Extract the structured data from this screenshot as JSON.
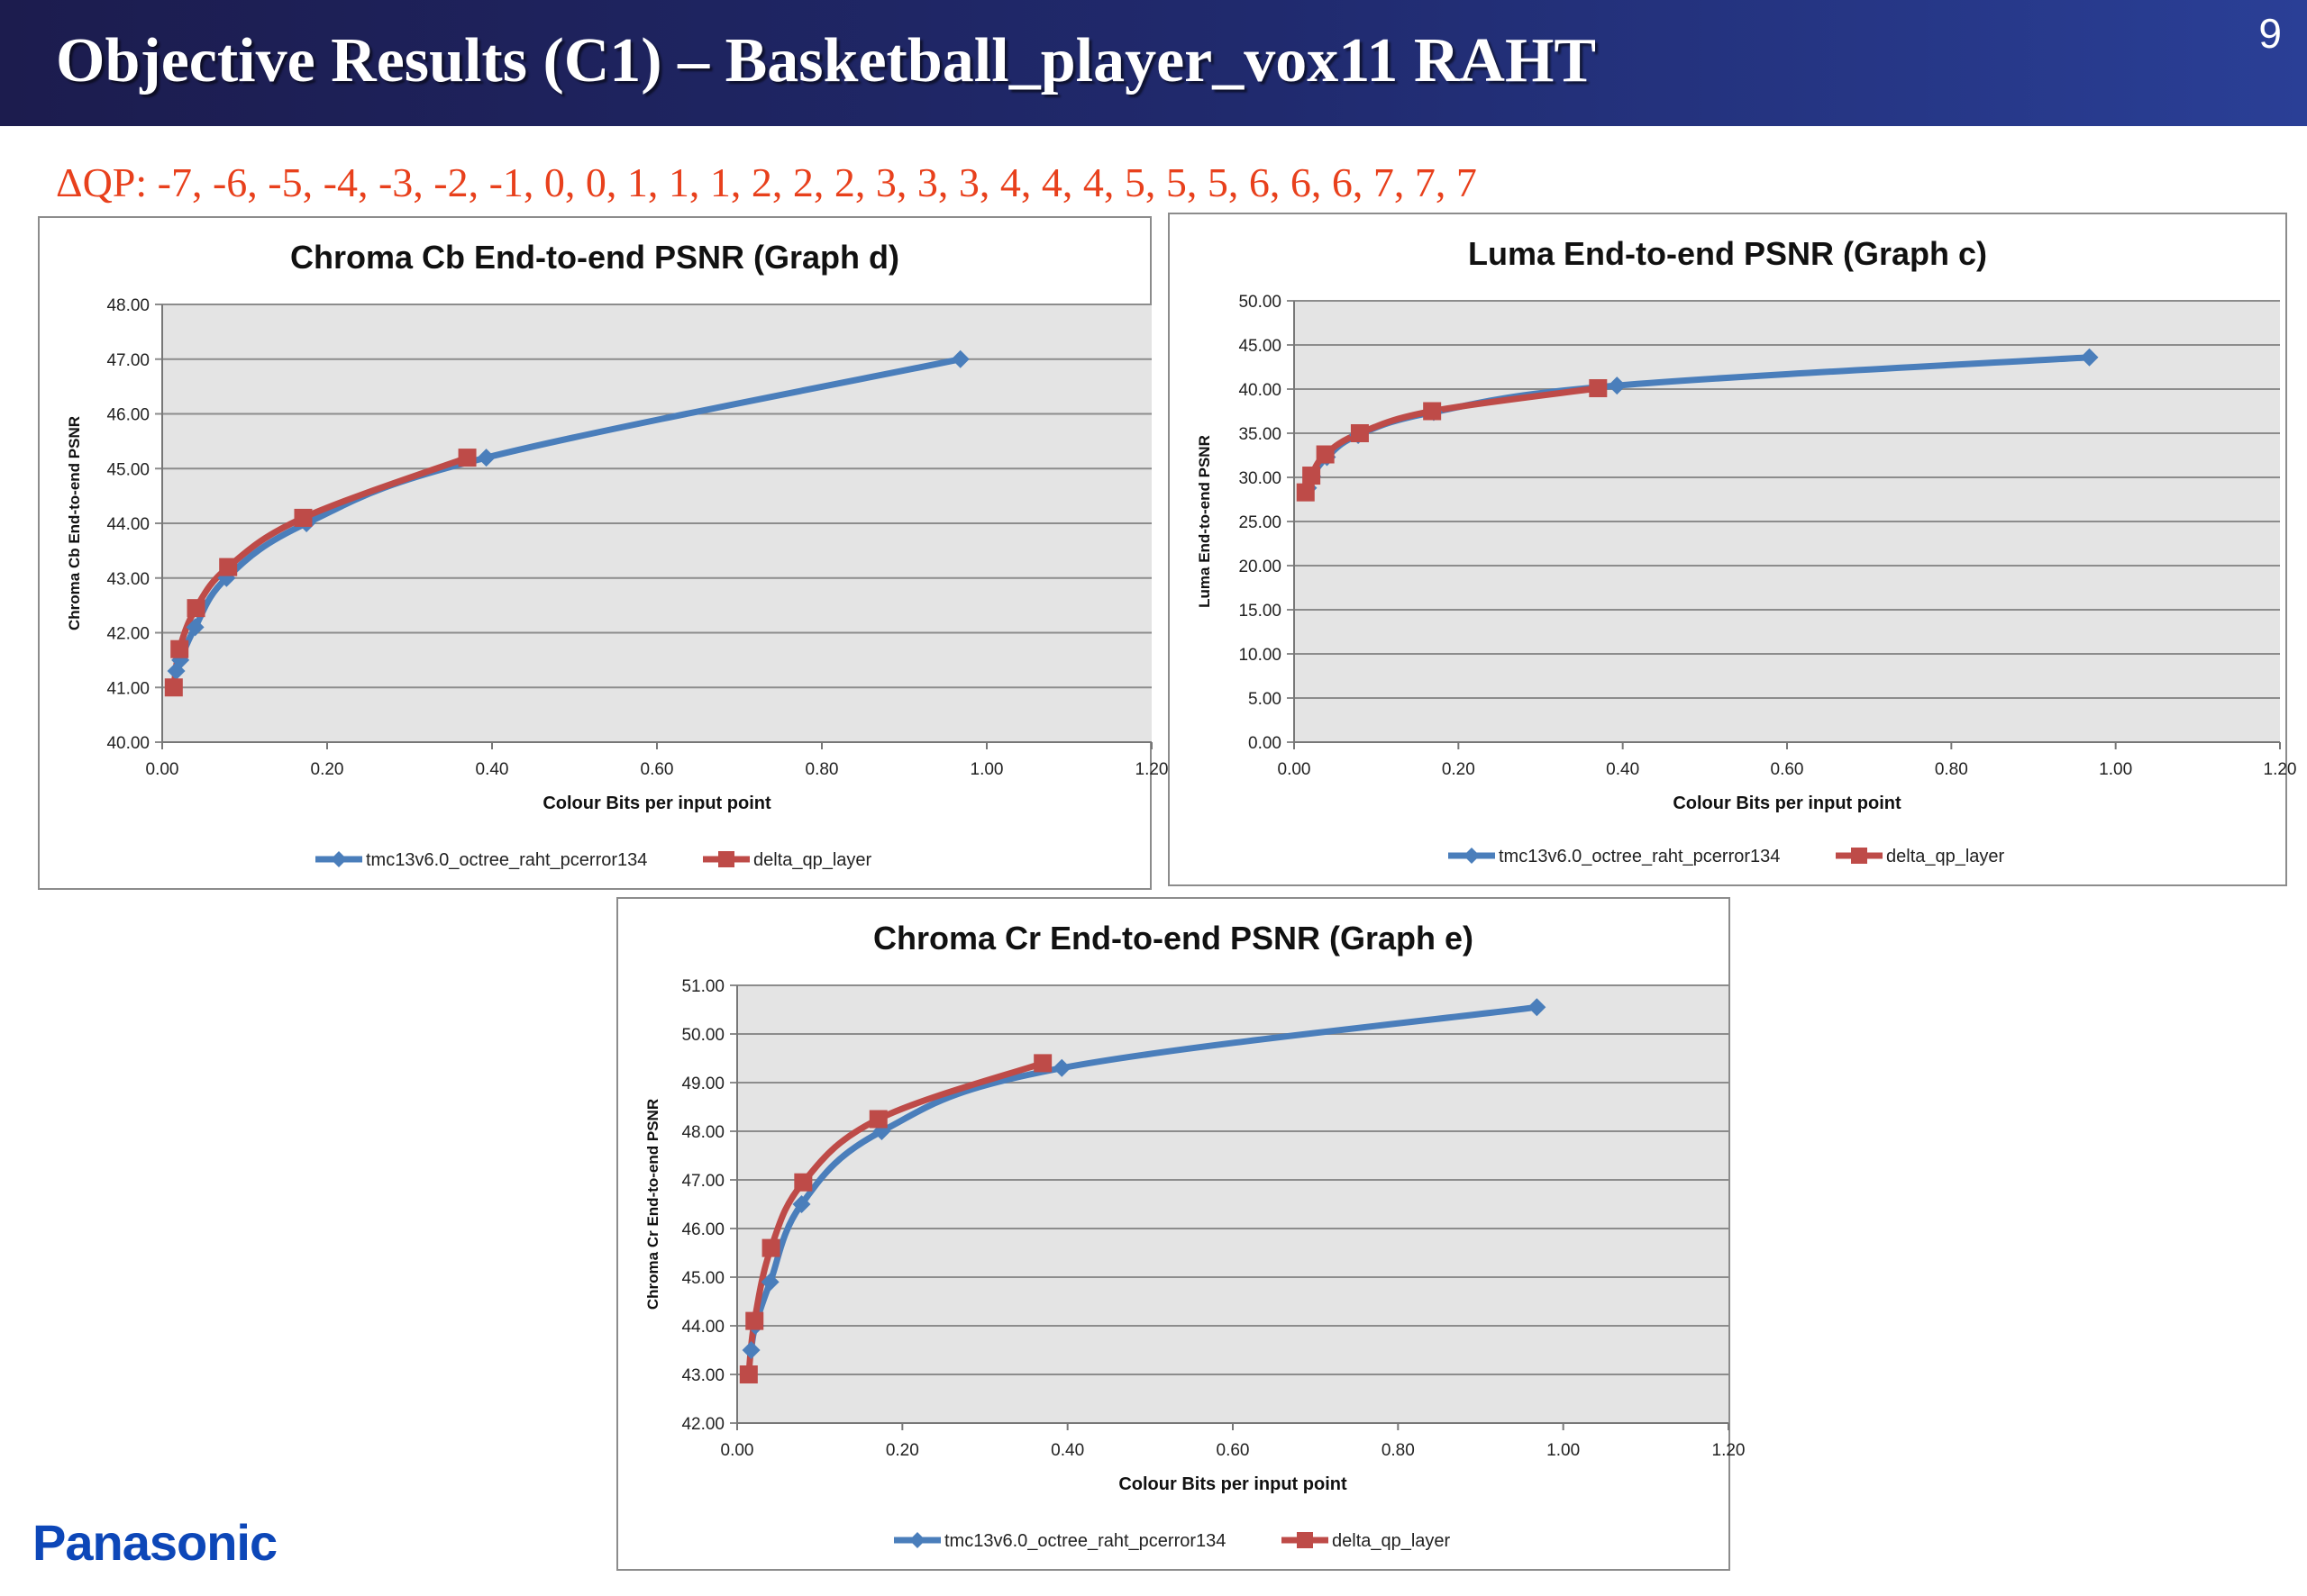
{
  "slide": {
    "title": "Objective Results (C1) – Basketball_player_vox11 RAHT",
    "page_number": "9",
    "dqp_text": "ΔQP: -7, -6, -5, -4, -3, -2, -1, 0, 0, 1, 1, 1, 2, 2, 2, 3, 3, 3, 4, 4, 4, 5, 5, 5, 6, 6, 6, 7, 7, 7",
    "logo": "Panasonic"
  },
  "colors": {
    "series_a": "#4a7ebb",
    "series_b": "#be4b48",
    "plot_bg": "#e4e4e4",
    "gridline": "#8c8c8c",
    "dqp_text": "#e8401c"
  },
  "chart_data": [
    {
      "type": "line",
      "title": "Chroma Cb End-to-end PSNR (Graph d)",
      "xlabel": "Colour  Bits per input point",
      "ylabel": "Chroma Cb End-to-end PSNR",
      "xlim": [
        0,
        1.2
      ],
      "ylim": [
        40,
        48
      ],
      "x_ticks": [
        "0.00",
        "0.20",
        "0.40",
        "0.60",
        "0.80",
        "1.00",
        "1.20"
      ],
      "y_ticks": [
        "40.00",
        "41.00",
        "42.00",
        "43.00",
        "44.00",
        "45.00",
        "46.00",
        "47.00",
        "48.00"
      ],
      "grid": true,
      "legend_position": "bottom",
      "series": [
        {
          "name": "tmc13v6.0_octree_raht_pcerror134",
          "marker": "diamond",
          "x": [
            0.017,
            0.022,
            0.04,
            0.078,
            0.175,
            0.393,
            0.968
          ],
          "y": [
            41.3,
            41.5,
            42.1,
            43.0,
            44.0,
            45.2,
            47.0
          ]
        },
        {
          "name": "delta_qp_layer",
          "marker": "square",
          "x": [
            0.014,
            0.021,
            0.041,
            0.08,
            0.171,
            0.37
          ],
          "y": [
            41.0,
            41.7,
            42.45,
            43.2,
            44.1,
            45.2
          ]
        }
      ]
    },
    {
      "type": "line",
      "title": "Luma End-to-end PSNR (Graph c)",
      "xlabel": "Colour  Bits per input point",
      "ylabel": "Luma End-to-end PSNR",
      "xlim": [
        0,
        1.2
      ],
      "ylim": [
        0,
        50
      ],
      "x_ticks": [
        "0.00",
        "0.20",
        "0.40",
        "0.60",
        "0.80",
        "1.00",
        "1.20"
      ],
      "y_ticks": [
        "0.00",
        "5.00",
        "10.00",
        "15.00",
        "20.00",
        "25.00",
        "30.00",
        "35.00",
        "40.00",
        "45.00",
        "50.00"
      ],
      "grid": true,
      "legend_position": "bottom",
      "series": [
        {
          "name": "tmc13v6.0_octree_raht_pcerror134",
          "marker": "diamond",
          "x": [
            0.017,
            0.022,
            0.04,
            0.078,
            0.17,
            0.393,
            0.968
          ],
          "y": [
            28.8,
            30.1,
            32.3,
            34.8,
            37.4,
            40.4,
            43.6
          ]
        },
        {
          "name": "delta_qp_layer",
          "marker": "square",
          "x": [
            0.014,
            0.021,
            0.038,
            0.08,
            0.168,
            0.37
          ],
          "y": [
            28.3,
            30.2,
            32.6,
            35.0,
            37.5,
            40.1
          ]
        }
      ]
    },
    {
      "type": "line",
      "title": "Chroma Cr End-to-end PSNR (Graph e)",
      "xlabel": "Colour  Bits per input point",
      "ylabel": "Chroma Cr End-to-end PSNR",
      "xlim": [
        0,
        1.2
      ],
      "ylim": [
        42,
        51
      ],
      "x_ticks": [
        "0.00",
        "0.20",
        "0.40",
        "0.60",
        "0.80",
        "1.00",
        "1.20"
      ],
      "y_ticks": [
        "42.00",
        "43.00",
        "44.00",
        "45.00",
        "46.00",
        "47.00",
        "48.00",
        "49.00",
        "50.00",
        "51.00"
      ],
      "grid": true,
      "legend_position": "bottom",
      "series": [
        {
          "name": "tmc13v6.0_octree_raht_pcerror134",
          "marker": "diamond",
          "x": [
            0.017,
            0.022,
            0.04,
            0.078,
            0.175,
            0.393,
            0.968
          ],
          "y": [
            43.5,
            44.0,
            44.9,
            46.5,
            48.0,
            49.3,
            50.55
          ]
        },
        {
          "name": "delta_qp_layer",
          "marker": "square",
          "x": [
            0.014,
            0.021,
            0.041,
            0.08,
            0.171,
            0.37
          ],
          "y": [
            43.0,
            44.1,
            45.6,
            46.95,
            48.25,
            49.4
          ]
        }
      ]
    }
  ]
}
